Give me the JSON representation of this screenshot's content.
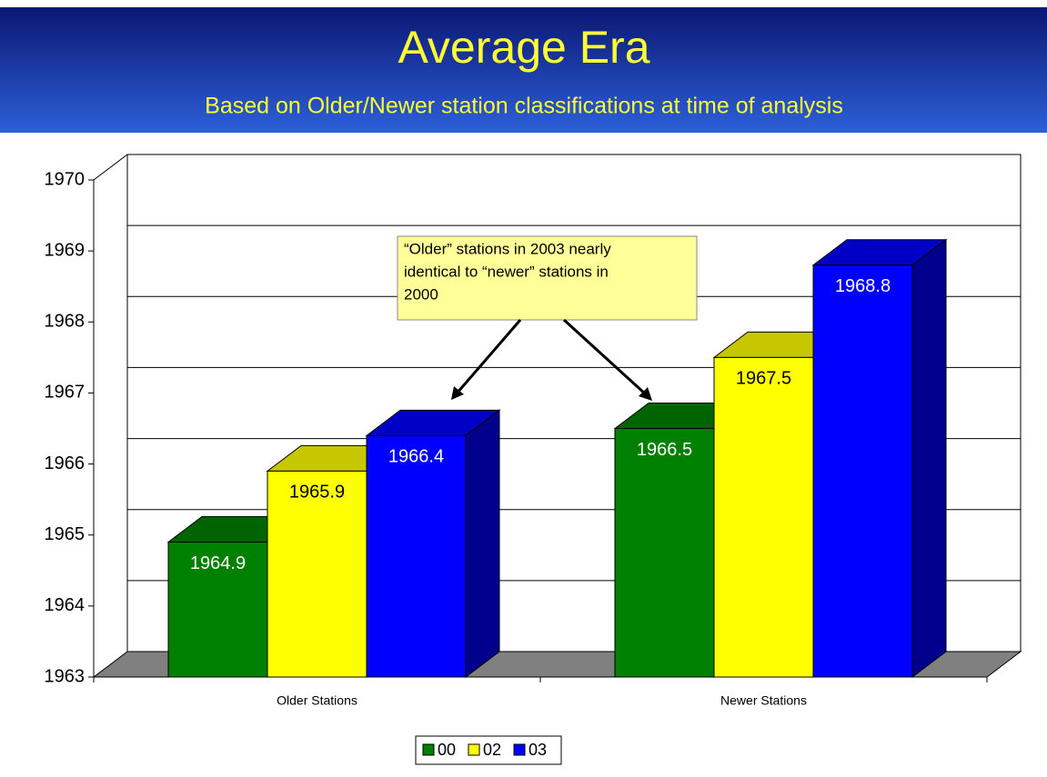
{
  "chart_data": {
    "type": "bar3d",
    "title": "Average Era",
    "subtitle": "Based on Older/Newer station classifications at time of analysis",
    "categories": [
      "Older Stations",
      "Newer Stations"
    ],
    "series": [
      {
        "name": "00",
        "color": "#008000",
        "values": [
          1964.9,
          1966.5
        ]
      },
      {
        "name": "02",
        "color": "#ffff00",
        "values": [
          1965.9,
          1967.5
        ]
      },
      {
        "name": "03",
        "color": "#0000ff",
        "values": [
          1966.4,
          1968.8
        ]
      }
    ],
    "ylim": [
      1963,
      1970
    ],
    "yticks": [
      1963,
      1964,
      1965,
      1966,
      1967,
      1968,
      1969,
      1970
    ],
    "grid": true,
    "legend": "bottom",
    "annotation_lines": [
      "“Older” stations in 2003 nearly",
      "identical to “newer” stations in",
      "2000"
    ]
  }
}
